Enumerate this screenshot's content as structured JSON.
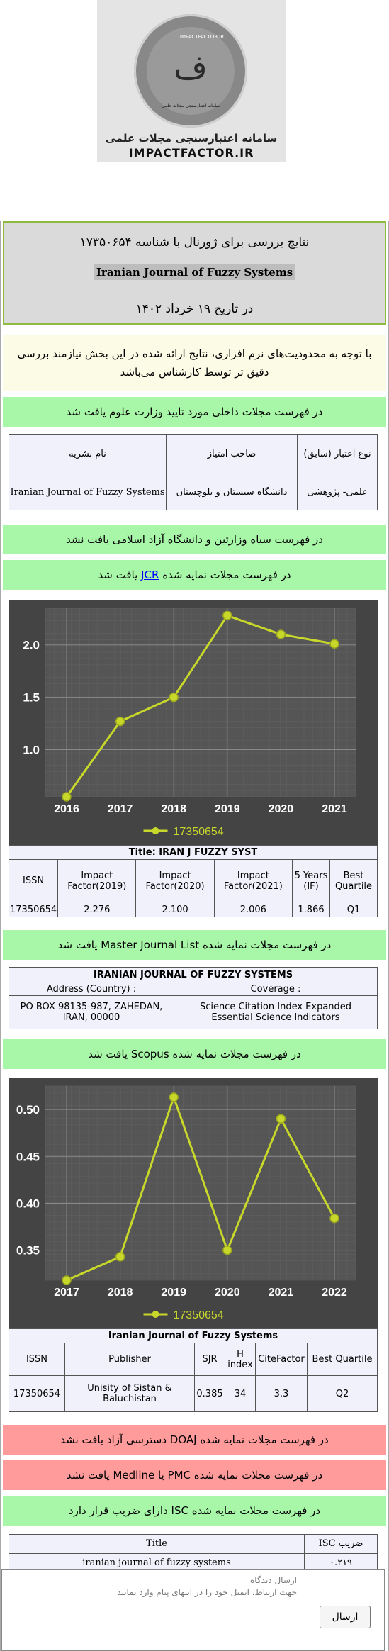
{
  "logo": {
    "arc_text": "IMPACTFACTOR.IR",
    "glyph": "ف",
    "sub_text": "سامانه اعتبارسنجی مجلات علمی",
    "title": "سامانه اعتبارسنجی مجلات علمی",
    "domain": "IMPACTFACTOR.IR"
  },
  "header": {
    "line1": "نتایج بررسی برای ژورنال با شناسه ۱۷۳۵۰۶۵۴",
    "journal": "Iranian Journal of Fuzzy Systems",
    "line3": "در تاریخ ۱۹ خرداد ۱۴۰۲"
  },
  "notice": "با توجه به محدودیت‌های نرم افزاری، نتایج ارائه شده در این بخش نیازمند بررسی دقیق تر توسط کارشناس می‌باشد",
  "ministry": {
    "banner": "در فهرست مجلات داخلی مورد تایید وزارت علوم یافت شد",
    "headers": [
      "نوع اعتبار (سابق)",
      "صاحب امتیاز",
      "نام نشریه"
    ],
    "row": [
      "علمی- پژوهشی",
      "دانشگاه سیستان و بلوچستان",
      "Iranian Journal of Fuzzy Systems"
    ]
  },
  "blacklist_banner": "در فهرست سیاه وزارتین و دانشگاه آزاد اسلامی یافت نشد",
  "jcr": {
    "banner_before": "در فهرست مجلات نمایه شده",
    "banner_link": "JCR",
    "banner_after": "یافت شد",
    "title": "Title: IRAN J FUZZY SYST",
    "headers": [
      "ISSN",
      "Impact Factor(2019)",
      "Impact Factor(2020)",
      "Impact Factor(2021)",
      "5 Years (IF)",
      "Best Quartile"
    ],
    "row": [
      "17350654",
      "2.276",
      "2.100",
      "2.006",
      "1.866",
      "Q1"
    ]
  },
  "mjl": {
    "banner": "در فهرست مجلات نمایه شده Master Journal List یافت شد",
    "title": "IRANIAN JOURNAL OF FUZZY SYSTEMS",
    "address_label": "Address (Country) :",
    "address_value": "PO BOX 98135-987, ZAHEDAN, IRAN, 00000",
    "coverage_label": "Coverage :",
    "coverage_values": [
      "Science Citation Index Expanded",
      "Essential Science Indicators"
    ]
  },
  "scopus": {
    "banner": "در فهرست مجلات نمایه شده Scopus یافت شد",
    "title": "Iranian Journal of Fuzzy Systems",
    "headers": [
      "ISSN",
      "Publisher",
      "SJR",
      "H index",
      "CiteFactor",
      "Best Quartile"
    ],
    "row": [
      "17350654",
      "Unisity of Sistan & Baluchistan",
      "0.385",
      "34",
      "3.3",
      "Q2"
    ]
  },
  "doaj_banner": "در فهرست مجلات نمایه شده DOAJ دسترسی آزاد یافت نشد",
  "pmc_banner": "در فهرست مجلات نمایه شده PMC یا Medline یافت نشد",
  "isc": {
    "banner": "در فهرست مجلات نمایه شده ISC دارای ضریب قرار دارد",
    "headers": [
      "Title",
      "ضریب ISC"
    ],
    "row": [
      "iranian journal of fuzzy systems",
      "۰.۲۱۹"
    ]
  },
  "feedback": {
    "placeholder_line1": "ارسال دیدگاه",
    "placeholder_line2": "جهت ارتباط، ایمیل خود را در انتهای پیام وارد نمایید",
    "send_label": "ارسال"
  },
  "chart_data": [
    {
      "type": "line",
      "x": [
        "2016",
        "2017",
        "2018",
        "2019",
        "2020",
        "2021"
      ],
      "series": [
        {
          "name": "17350654",
          "values": [
            0.55,
            1.27,
            1.5,
            2.28,
            2.1,
            2.01
          ]
        }
      ],
      "yticks": [
        "1.0",
        "1.5",
        "2.0"
      ],
      "ylim": [
        0.55,
        2.35
      ],
      "grid": true,
      "legend": "bottom",
      "colors": {
        "bg": "#444444",
        "line": "#c8d82b",
        "text": "#ffffff"
      }
    },
    {
      "type": "line",
      "x": [
        "2017",
        "2018",
        "2019",
        "2020",
        "2021",
        "2022"
      ],
      "series": [
        {
          "name": "17350654",
          "values": [
            0.318,
            0.343,
            0.513,
            0.35,
            0.49,
            0.384
          ]
        }
      ],
      "yticks": [
        "0.35",
        "0.40",
        "0.45",
        "0.50"
      ],
      "ylim": [
        0.318,
        0.525
      ],
      "grid": true,
      "legend": "bottom",
      "colors": {
        "bg": "#444444",
        "line": "#c8d82b",
        "text": "#ffffff"
      }
    }
  ]
}
